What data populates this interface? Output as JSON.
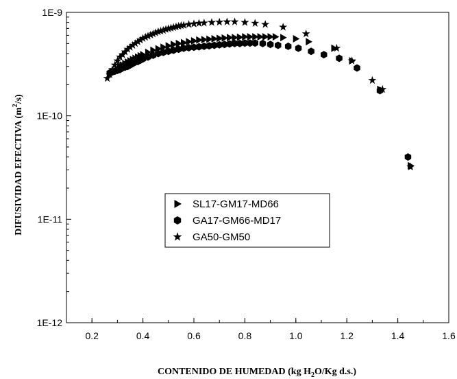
{
  "chart_data": {
    "type": "scatter",
    "title": "",
    "xlabel": {
      "prefix": "CONTENIDO DE HUMEDAD (kg H",
      "sub": "2",
      "suffix": "O/Kg d.s.)"
    },
    "ylabel": {
      "prefix": "DIFUSIVIDAD EFECTIVA (m",
      "sup": "2",
      "suffix": "/s)"
    },
    "xlim": [
      0.1,
      1.6
    ],
    "ylim": [
      1e-12,
      1e-09
    ],
    "yscale": "log",
    "grid": false,
    "legend_position": "center",
    "x_ticks": [
      {
        "value": 0.2,
        "label": "0.2"
      },
      {
        "value": 0.4,
        "label": "0.4"
      },
      {
        "value": 0.6,
        "label": "0.6"
      },
      {
        "value": 0.8,
        "label": "0.8"
      },
      {
        "value": 1.0,
        "label": "1.0"
      },
      {
        "value": 1.2,
        "label": "1.2"
      },
      {
        "value": 1.4,
        "label": "1.4"
      },
      {
        "value": 1.6,
        "label": "1.6"
      }
    ],
    "y_ticks": [
      {
        "value": 1e-12,
        "label": "1E-12"
      },
      {
        "value": 1e-11,
        "label": "1E-11"
      },
      {
        "value": 1e-10,
        "label": "1E-10"
      },
      {
        "value": 1e-09,
        "label": "1E-9"
      }
    ],
    "series": [
      {
        "name": "SL17-GM17-MD66",
        "marker": "triangle-right",
        "x": [
          0.27,
          0.28,
          0.29,
          0.3,
          0.31,
          0.32,
          0.33,
          0.34,
          0.35,
          0.36,
          0.37,
          0.38,
          0.39,
          0.4,
          0.42,
          0.44,
          0.46,
          0.48,
          0.5,
          0.52,
          0.54,
          0.56,
          0.58,
          0.6,
          0.62,
          0.64,
          0.66,
          0.68,
          0.7,
          0.72,
          0.74,
          0.76,
          0.78,
          0.8,
          0.82,
          0.84,
          0.86,
          0.88,
          0.9,
          0.92,
          0.95,
          1.0,
          1.05,
          1.15,
          1.22,
          1.33,
          1.45
        ],
        "y": [
          2.5e-10,
          2.6e-10,
          2.7e-10,
          2.85e-10,
          3e-10,
          3.1e-10,
          3.2e-10,
          3.3e-10,
          3.4e-10,
          3.5e-10,
          3.6e-10,
          3.7e-10,
          3.8e-10,
          3.9e-10,
          4.1e-10,
          4.3e-10,
          4.45e-10,
          4.6e-10,
          4.75e-10,
          4.9e-10,
          5e-10,
          5.1e-10,
          5.2e-10,
          5.3e-10,
          5.4e-10,
          5.45e-10,
          5.5e-10,
          5.55e-10,
          5.6e-10,
          5.65e-10,
          5.7e-10,
          5.7e-10,
          5.75e-10,
          5.8e-10,
          5.8e-10,
          5.8e-10,
          5.8e-10,
          5.8e-10,
          5.8e-10,
          5.8e-10,
          5.7e-10,
          5.55e-10,
          5.2e-10,
          4.5e-10,
          3.4e-10,
          1.8e-10,
          3.3e-11
        ]
      },
      {
        "name": "GA17-GM66-MD17",
        "marker": "hexagon",
        "x": [
          0.27,
          0.28,
          0.29,
          0.3,
          0.31,
          0.32,
          0.33,
          0.34,
          0.35,
          0.36,
          0.37,
          0.38,
          0.39,
          0.4,
          0.42,
          0.44,
          0.46,
          0.48,
          0.5,
          0.52,
          0.54,
          0.56,
          0.58,
          0.6,
          0.62,
          0.64,
          0.66,
          0.68,
          0.7,
          0.72,
          0.74,
          0.76,
          0.78,
          0.8,
          0.82,
          0.84,
          0.87,
          0.9,
          0.93,
          0.97,
          1.01,
          1.06,
          1.11,
          1.17,
          1.24,
          1.33,
          1.44
        ],
        "y": [
          2.6e-10,
          2.65e-10,
          2.7e-10,
          2.75e-10,
          2.8e-10,
          2.9e-10,
          2.95e-10,
          3e-10,
          3.1e-10,
          3.2e-10,
          3.3e-10,
          3.35e-10,
          3.45e-10,
          3.55e-10,
          3.7e-10,
          3.85e-10,
          4e-10,
          4.1e-10,
          4.2e-10,
          4.3e-10,
          4.4e-10,
          4.5e-10,
          4.55e-10,
          4.6e-10,
          4.65e-10,
          4.7e-10,
          4.75e-10,
          4.8e-10,
          4.85e-10,
          4.9e-10,
          4.95e-10,
          5e-10,
          5e-10,
          5.05e-10,
          5.05e-10,
          5.05e-10,
          5e-10,
          4.9e-10,
          4.8e-10,
          4.7e-10,
          4.5e-10,
          4.2e-10,
          3.9e-10,
          3.6e-10,
          2.9e-10,
          1.75e-10,
          4e-11
        ]
      },
      {
        "name": "GA50-GM50",
        "marker": "star",
        "x": [
          0.26,
          0.27,
          0.28,
          0.29,
          0.3,
          0.31,
          0.32,
          0.33,
          0.34,
          0.35,
          0.36,
          0.37,
          0.38,
          0.39,
          0.4,
          0.41,
          0.42,
          0.43,
          0.44,
          0.45,
          0.46,
          0.47,
          0.48,
          0.49,
          0.5,
          0.51,
          0.52,
          0.53,
          0.54,
          0.55,
          0.56,
          0.58,
          0.6,
          0.62,
          0.64,
          0.67,
          0.7,
          0.73,
          0.76,
          0.8,
          0.84,
          0.88,
          0.95,
          1.04,
          1.16,
          1.22,
          1.3,
          1.34,
          1.45
        ],
        "y": [
          2.3e-10,
          2.5e-10,
          2.8e-10,
          3.1e-10,
          3.4e-10,
          3.7e-10,
          3.9e-10,
          4.15e-10,
          4.4e-10,
          4.6e-10,
          4.8e-10,
          5e-10,
          5.2e-10,
          5.4e-10,
          5.6e-10,
          5.75e-10,
          5.9e-10,
          6.05e-10,
          6.2e-10,
          6.35e-10,
          6.5e-10,
          6.6e-10,
          6.7e-10,
          6.85e-10,
          6.95e-10,
          7.05e-10,
          7.15e-10,
          7.25e-10,
          7.35e-10,
          7.45e-10,
          7.5e-10,
          7.65e-10,
          7.75e-10,
          7.85e-10,
          7.9e-10,
          8e-10,
          8.05e-10,
          8.1e-10,
          8.1e-10,
          8e-10,
          7.85e-10,
          7.65e-10,
          7.2e-10,
          6.2e-10,
          4.5e-10,
          3.4e-10,
          2.2e-10,
          1.8e-10,
          3.2e-11
        ]
      }
    ]
  }
}
